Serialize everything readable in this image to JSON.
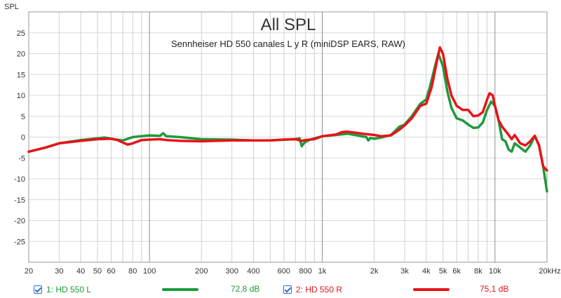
{
  "chart_data": {
    "type": "line",
    "title": "All SPL",
    "subtitle": "Sennheiser HD 550 canales L y R (miniDSP EARS, RAW)",
    "ylabel": "SPL",
    "xlabel_unit": "Hz",
    "x_scale": "log",
    "xlim": [
      20,
      20000
    ],
    "ylim": [
      -30,
      30
    ],
    "y_ticks": [
      25,
      20,
      15,
      10,
      5,
      0,
      -5,
      -10,
      -15,
      -20,
      -25
    ],
    "x_ticks": [
      {
        "value": 20,
        "label": "20"
      },
      {
        "value": 30,
        "label": "30"
      },
      {
        "value": 40,
        "label": "40"
      },
      {
        "value": 50,
        "label": "50"
      },
      {
        "value": 60,
        "label": "60"
      },
      {
        "value": 80,
        "label": "80"
      },
      {
        "value": 100,
        "label": "100"
      },
      {
        "value": 200,
        "label": "200"
      },
      {
        "value": 300,
        "label": "300"
      },
      {
        "value": 400,
        "label": "400"
      },
      {
        "value": 600,
        "label": "600"
      },
      {
        "value": 800,
        "label": "800"
      },
      {
        "value": 1000,
        "label": "1k"
      },
      {
        "value": 2000,
        "label": "2k"
      },
      {
        "value": 3000,
        "label": "3k"
      },
      {
        "value": 4000,
        "label": "4k"
      },
      {
        "value": 5000,
        "label": "5k"
      },
      {
        "value": 6000,
        "label": "6k"
      },
      {
        "value": 8000,
        "label": "8k"
      },
      {
        "value": 10000,
        "label": "10k"
      },
      {
        "value": 20000,
        "label": "20kHz"
      }
    ],
    "major_x": [
      100,
      1000,
      10000
    ],
    "grid": true,
    "series": [
      {
        "name": "1: HD 550 L",
        "color": "#1e9a3c",
        "level": "72,8 dB",
        "points": [
          [
            20,
            -3.5
          ],
          [
            25,
            -2.5
          ],
          [
            30,
            -1.5
          ],
          [
            40,
            -0.7
          ],
          [
            50,
            -0.3
          ],
          [
            55,
            -0.1
          ],
          [
            60,
            -0.4
          ],
          [
            70,
            -0.8
          ],
          [
            80,
            0.0
          ],
          [
            90,
            0.2
          ],
          [
            100,
            0.4
          ],
          [
            115,
            0.3
          ],
          [
            120,
            0.9
          ],
          [
            125,
            0.2
          ],
          [
            150,
            0.0
          ],
          [
            200,
            -0.5
          ],
          [
            300,
            -0.6
          ],
          [
            400,
            -0.8
          ],
          [
            500,
            -0.8
          ],
          [
            600,
            -0.6
          ],
          [
            700,
            -0.5
          ],
          [
            740,
            -0.3
          ],
          [
            760,
            -2.2
          ],
          [
            790,
            -1.3
          ],
          [
            850,
            -0.6
          ],
          [
            1000,
            0.2
          ],
          [
            1200,
            0.5
          ],
          [
            1400,
            0.8
          ],
          [
            1600,
            0.4
          ],
          [
            1800,
            0.0
          ],
          [
            1850,
            -0.8
          ],
          [
            1900,
            -0.2
          ],
          [
            2000,
            -0.4
          ],
          [
            2200,
            -0.1
          ],
          [
            2500,
            0.5
          ],
          [
            2800,
            2.5
          ],
          [
            3000,
            3.0
          ],
          [
            3300,
            5.0
          ],
          [
            3700,
            8.0
          ],
          [
            4000,
            9.0
          ],
          [
            4200,
            12.0
          ],
          [
            4500,
            17.0
          ],
          [
            4700,
            20.0
          ],
          [
            5000,
            17.0
          ],
          [
            5300,
            11.0
          ],
          [
            5600,
            7.0
          ],
          [
            6000,
            4.5
          ],
          [
            6500,
            4.0
          ],
          [
            7000,
            3.0
          ],
          [
            7500,
            2.2
          ],
          [
            8000,
            2.3
          ],
          [
            8500,
            3.5
          ],
          [
            9000,
            6.5
          ],
          [
            9500,
            8.5
          ],
          [
            10000,
            7.5
          ],
          [
            10500,
            4.0
          ],
          [
            11000,
            -0.5
          ],
          [
            11500,
            -1.0
          ],
          [
            12000,
            -3.0
          ],
          [
            12500,
            -3.5
          ],
          [
            13000,
            -1.5
          ],
          [
            14000,
            -2.5
          ],
          [
            15000,
            -3.5
          ],
          [
            16000,
            -2.0
          ],
          [
            17000,
            0.3
          ],
          [
            18000,
            -2.0
          ],
          [
            19000,
            -7.0
          ],
          [
            20000,
            -13.0
          ]
        ]
      },
      {
        "name": "2: HD 550 R",
        "color": "#e8131a",
        "level": "75,1 dB",
        "points": [
          [
            20,
            -3.5
          ],
          [
            25,
            -2.5
          ],
          [
            30,
            -1.5
          ],
          [
            40,
            -0.9
          ],
          [
            50,
            -0.5
          ],
          [
            60,
            -0.4
          ],
          [
            65,
            -0.7
          ],
          [
            70,
            -1.3
          ],
          [
            75,
            -1.8
          ],
          [
            80,
            -1.5
          ],
          [
            90,
            -0.7
          ],
          [
            100,
            -0.6
          ],
          [
            115,
            -0.5
          ],
          [
            125,
            -0.7
          ],
          [
            150,
            -0.9
          ],
          [
            200,
            -1.0
          ],
          [
            300,
            -0.8
          ],
          [
            400,
            -0.8
          ],
          [
            500,
            -0.8
          ],
          [
            600,
            -0.6
          ],
          [
            700,
            -0.5
          ],
          [
            760,
            -0.9
          ],
          [
            800,
            -0.7
          ],
          [
            900,
            -0.5
          ],
          [
            1000,
            0.2
          ],
          [
            1200,
            0.6
          ],
          [
            1300,
            1.2
          ],
          [
            1400,
            1.3
          ],
          [
            1600,
            1.0
          ],
          [
            1800,
            0.7
          ],
          [
            2000,
            0.5
          ],
          [
            2200,
            0.2
          ],
          [
            2500,
            0.4
          ],
          [
            2800,
            1.8
          ],
          [
            3000,
            2.8
          ],
          [
            3300,
            4.5
          ],
          [
            3700,
            7.5
          ],
          [
            4000,
            8.0
          ],
          [
            4300,
            12.0
          ],
          [
            4600,
            18.0
          ],
          [
            4800,
            21.5
          ],
          [
            5000,
            20.0
          ],
          [
            5300,
            14.0
          ],
          [
            5600,
            10.0
          ],
          [
            6000,
            7.5
          ],
          [
            6500,
            6.5
          ],
          [
            7000,
            6.5
          ],
          [
            7500,
            5.0
          ],
          [
            8000,
            5.2
          ],
          [
            8500,
            6.0
          ],
          [
            9000,
            9.0
          ],
          [
            9300,
            10.5
          ],
          [
            9700,
            10.0
          ],
          [
            10000,
            7.5
          ],
          [
            10500,
            4.0
          ],
          [
            11000,
            2.5
          ],
          [
            12000,
            0.5
          ],
          [
            12500,
            -0.5
          ],
          [
            13000,
            0.5
          ],
          [
            14000,
            -1.5
          ],
          [
            15000,
            -2.0
          ],
          [
            16000,
            -1.0
          ],
          [
            17000,
            0.3
          ],
          [
            18000,
            -2.0
          ],
          [
            19000,
            -7.0
          ],
          [
            20000,
            -8.0
          ]
        ]
      }
    ]
  },
  "legend": [
    {
      "label": "1: HD 550 L",
      "value": "72,8 dB",
      "color": "#1e9a3c"
    },
    {
      "label": "2: HD 550 R",
      "value": "75,1 dB",
      "color": "#e8131a"
    }
  ]
}
